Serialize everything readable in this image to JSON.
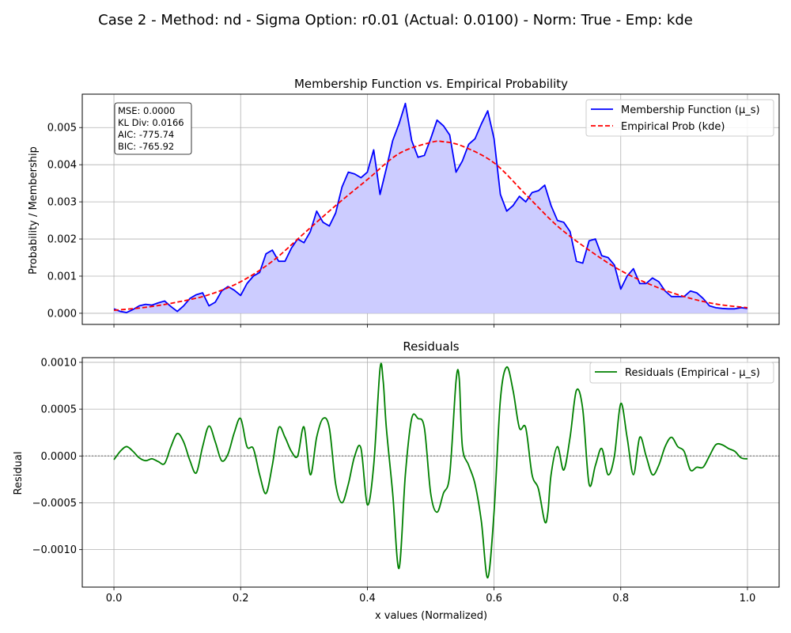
{
  "figure": {
    "suptitle": "Case 2 - Method: nd - Sigma Option: r0.01 (Actual: 0.0100) - Norm: True - Emp: kde"
  },
  "colors": {
    "membership": "#0000ff",
    "fill": "#ccccff",
    "empirical": "#ff0000",
    "residual": "#008000",
    "grid": "#b0b0b0",
    "zero_line": "#808080"
  },
  "chart_data": [
    {
      "type": "line",
      "title": "Membership Function vs. Empirical Probability",
      "ylabel": "Probability / Membership",
      "xlabel": "",
      "xlim": [
        -0.05,
        1.05
      ],
      "ylim": [
        -0.0003,
        0.0059
      ],
      "xticks": [
        0.0,
        0.2,
        0.4,
        0.6,
        0.8,
        1.0
      ],
      "xtick_labels_shown": false,
      "yticks": [
        0.0,
        0.001,
        0.002,
        0.003,
        0.004,
        0.005
      ],
      "ytick_labels": [
        "0.000",
        "0.001",
        "0.002",
        "0.003",
        "0.004",
        "0.005"
      ],
      "grid": true,
      "legend_position": "top-right",
      "stats_box": [
        "MSE: 0.0000",
        "KL Div: 0.0166",
        "AIC: -775.74",
        "BIC: -765.92"
      ],
      "series": [
        {
          "name": "Membership Function (μ_s)",
          "style": "solid",
          "filled": true,
          "x": [
            0.0,
            0.01,
            0.02,
            0.03,
            0.04,
            0.05,
            0.06,
            0.07,
            0.08,
            0.09,
            0.1,
            0.11,
            0.12,
            0.13,
            0.14,
            0.15,
            0.16,
            0.17,
            0.18,
            0.19,
            0.2,
            0.21,
            0.22,
            0.23,
            0.24,
            0.25,
            0.26,
            0.27,
            0.28,
            0.29,
            0.3,
            0.31,
            0.32,
            0.33,
            0.34,
            0.35,
            0.36,
            0.37,
            0.38,
            0.39,
            0.4,
            0.41,
            0.42,
            0.43,
            0.44,
            0.45,
            0.46,
            0.47,
            0.48,
            0.49,
            0.5,
            0.51,
            0.52,
            0.53,
            0.54,
            0.55,
            0.56,
            0.57,
            0.58,
            0.59,
            0.6,
            0.61,
            0.62,
            0.63,
            0.64,
            0.65,
            0.66,
            0.67,
            0.68,
            0.69,
            0.7,
            0.71,
            0.72,
            0.73,
            0.74,
            0.75,
            0.76,
            0.77,
            0.78,
            0.79,
            0.8,
            0.81,
            0.82,
            0.83,
            0.84,
            0.85,
            0.86,
            0.87,
            0.88,
            0.89,
            0.9,
            0.91,
            0.92,
            0.93,
            0.94,
            0.95,
            0.96,
            0.97,
            0.98,
            0.99,
            1.0
          ],
          "y": [
            0.00012,
            5e-05,
            2e-05,
            0.0001,
            0.0002,
            0.00024,
            0.00022,
            0.00028,
            0.00033,
            0.00018,
            5e-05,
            0.0002,
            0.0004,
            0.0005,
            0.00055,
            0.0002,
            0.0003,
            0.0006,
            0.00072,
            0.00062,
            0.00048,
            0.0008,
            0.001,
            0.0011,
            0.0016,
            0.0017,
            0.0014,
            0.0014,
            0.00175,
            0.002,
            0.0019,
            0.0022,
            0.00275,
            0.00245,
            0.00235,
            0.0027,
            0.0034,
            0.0038,
            0.00375,
            0.00365,
            0.0038,
            0.0044,
            0.0032,
            0.0039,
            0.00465,
            0.0051,
            0.00565,
            0.00465,
            0.0042,
            0.00425,
            0.0047,
            0.0052,
            0.00505,
            0.0048,
            0.0038,
            0.0041,
            0.00455,
            0.0047,
            0.0051,
            0.00545,
            0.0047,
            0.0032,
            0.00275,
            0.0029,
            0.00315,
            0.003,
            0.00325,
            0.0033,
            0.00345,
            0.0029,
            0.0025,
            0.00245,
            0.0022,
            0.0014,
            0.00135,
            0.00195,
            0.002,
            0.00155,
            0.0015,
            0.0013,
            0.00065,
            0.001,
            0.0012,
            0.0008,
            0.0008,
            0.00095,
            0.00085,
            0.0006,
            0.00045,
            0.00045,
            0.00045,
            0.0006,
            0.00055,
            0.0004,
            0.0002,
            0.00015,
            0.00013,
            0.00012,
            0.00012,
            0.00015,
            0.00013
          ]
        },
        {
          "name": "Empirical Prob (kde)",
          "style": "dashed",
          "x": [
            0.0,
            0.05,
            0.1,
            0.15,
            0.2,
            0.25,
            0.3,
            0.35,
            0.4,
            0.45,
            0.5,
            0.52,
            0.55,
            0.6,
            0.65,
            0.7,
            0.75,
            0.8,
            0.85,
            0.9,
            0.95,
            1.0
          ],
          "y": [
            8e-05,
            0.00016,
            0.0003,
            0.0005,
            0.00085,
            0.0014,
            0.00215,
            0.0029,
            0.0036,
            0.0043,
            0.0046,
            0.00462,
            0.0045,
            0.00405,
            0.0032,
            0.00235,
            0.0017,
            0.00115,
            0.00075,
            0.00045,
            0.00025,
            0.00015
          ]
        }
      ]
    },
    {
      "type": "line",
      "title": "Residuals",
      "ylabel": "Residual",
      "xlabel": "x values (Normalized)",
      "xlim": [
        -0.05,
        1.05
      ],
      "ylim": [
        -0.0014,
        0.00105
      ],
      "xticks": [
        0.0,
        0.2,
        0.4,
        0.6,
        0.8,
        1.0
      ],
      "xtick_labels": [
        "0.0",
        "0.2",
        "0.4",
        "0.6",
        "0.8",
        "1.0"
      ],
      "yticks": [
        -0.001,
        -0.0005,
        0.0,
        0.0005,
        0.001
      ],
      "ytick_labels": [
        "−0.0010",
        "−0.0005",
        "0.0000",
        "0.0005",
        "0.0010"
      ],
      "grid": true,
      "legend_position": "top-right",
      "reference_line": 0.0,
      "series": [
        {
          "name": "Residuals (Empirical - μ_s)",
          "style": "solid",
          "x": [
            0.0,
            0.01,
            0.02,
            0.03,
            0.04,
            0.05,
            0.06,
            0.07,
            0.08,
            0.09,
            0.1,
            0.11,
            0.12,
            0.13,
            0.14,
            0.15,
            0.16,
            0.17,
            0.18,
            0.19,
            0.2,
            0.21,
            0.22,
            0.23,
            0.24,
            0.25,
            0.26,
            0.27,
            0.28,
            0.29,
            0.3,
            0.31,
            0.32,
            0.33,
            0.34,
            0.35,
            0.36,
            0.37,
            0.38,
            0.39,
            0.4,
            0.41,
            0.42,
            0.425,
            0.43,
            0.44,
            0.45,
            0.46,
            0.47,
            0.48,
            0.49,
            0.5,
            0.51,
            0.52,
            0.53,
            0.54,
            0.545,
            0.55,
            0.56,
            0.57,
            0.58,
            0.59,
            0.6,
            0.61,
            0.62,
            0.63,
            0.64,
            0.65,
            0.66,
            0.67,
            0.68,
            0.685,
            0.69,
            0.7,
            0.71,
            0.72,
            0.73,
            0.74,
            0.75,
            0.76,
            0.77,
            0.78,
            0.79,
            0.8,
            0.81,
            0.82,
            0.83,
            0.84,
            0.85,
            0.86,
            0.87,
            0.88,
            0.89,
            0.9,
            0.91,
            0.92,
            0.93,
            0.94,
            0.95,
            0.96,
            0.97,
            0.98,
            0.99,
            1.0
          ],
          "y": [
            -4e-05,
            5e-05,
            0.0001,
            5e-05,
            -2e-05,
            -5e-05,
            -3e-05,
            -6e-05,
            -8e-05,
            0.0001,
            0.00024,
            0.00015,
            -5e-05,
            -0.00018,
            0.0001,
            0.00032,
            0.00015,
            -5e-05,
            2e-05,
            0.00025,
            0.0004,
            0.0001,
            8e-05,
            -0.0002,
            -0.0004,
            -0.0001,
            0.0003,
            0.0002,
            5e-05,
            0.0,
            0.00031,
            -0.0002,
            0.0002,
            0.0004,
            0.0003,
            -0.0003,
            -0.0005,
            -0.0003,
            0.0,
            8e-05,
            -0.00052,
            -0.0001,
            0.00093,
            0.0008,
            0.0003,
            -0.0004,
            -0.0012,
            -0.0002,
            0.0004,
            0.0004,
            0.0003,
            -0.0004,
            -0.0006,
            -0.0004,
            -0.0002,
            0.0008,
            0.00083,
            0.0001,
            -0.0001,
            -0.0003,
            -0.0007,
            -0.0013,
            -0.0006,
            0.0006,
            0.00095,
            0.0007,
            0.0003,
            0.0003,
            -0.0002,
            -0.00035,
            -0.0007,
            -0.0006,
            -0.0002,
            0.0001,
            -0.00015,
            0.0002,
            0.0007,
            0.0005,
            -0.0003,
            -0.0001,
            8e-05,
            -0.0002,
            0.0,
            0.00056,
            0.0002,
            -0.0002,
            0.0002,
            0.0,
            -0.0002,
            -0.0001,
            0.0001,
            0.0002,
            0.0001,
            5e-05,
            -0.00015,
            -0.00012,
            -0.00012,
            0.0,
            0.00012,
            0.00012,
            8e-05,
            5e-05,
            -2e-05,
            -3e-05
          ]
        }
      ]
    }
  ]
}
